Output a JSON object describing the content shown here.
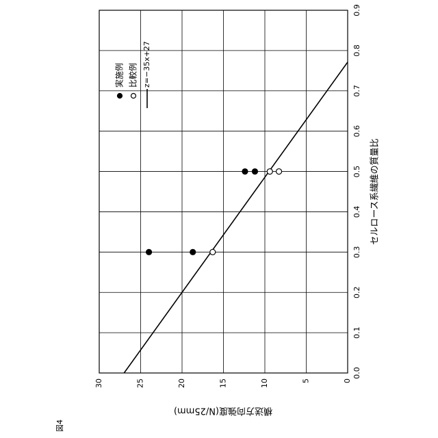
{
  "figure_label": "図4",
  "chart_data": {
    "type": "scatter",
    "xlabel": "セルロース系繊維の質量比",
    "ylabel": "横送方向強度(N/25mm)",
    "xlim": [
      0,
      0.9
    ],
    "xticks": [
      {
        "value": 0,
        "label": "0.0"
      },
      0.1,
      0.2,
      0.3,
      0.4,
      0.5,
      0.6,
      0.7,
      0.8,
      0.9
    ],
    "ylim": [
      0,
      30
    ],
    "yticks": [
      0,
      5,
      10,
      15,
      20,
      25,
      30
    ],
    "grid": true,
    "rotation": -90,
    "series": [
      {
        "name": "実施例",
        "marker": "filled",
        "color": "#000000",
        "x": [
          0.3,
          0.3,
          0.5,
          0.5
        ],
        "values": [
          24.0,
          18.7,
          12.4,
          11.2
        ]
      },
      {
        "name": "比較例",
        "marker": "open",
        "color": "#000000",
        "x": [
          0.3,
          0.5,
          0.5
        ],
        "values": [
          16.3,
          9.4,
          8.3
        ]
      }
    ],
    "fit": {
      "name": "z=−35x+27",
      "slope": -35,
      "intercept": 27,
      "color": "#000000"
    }
  }
}
